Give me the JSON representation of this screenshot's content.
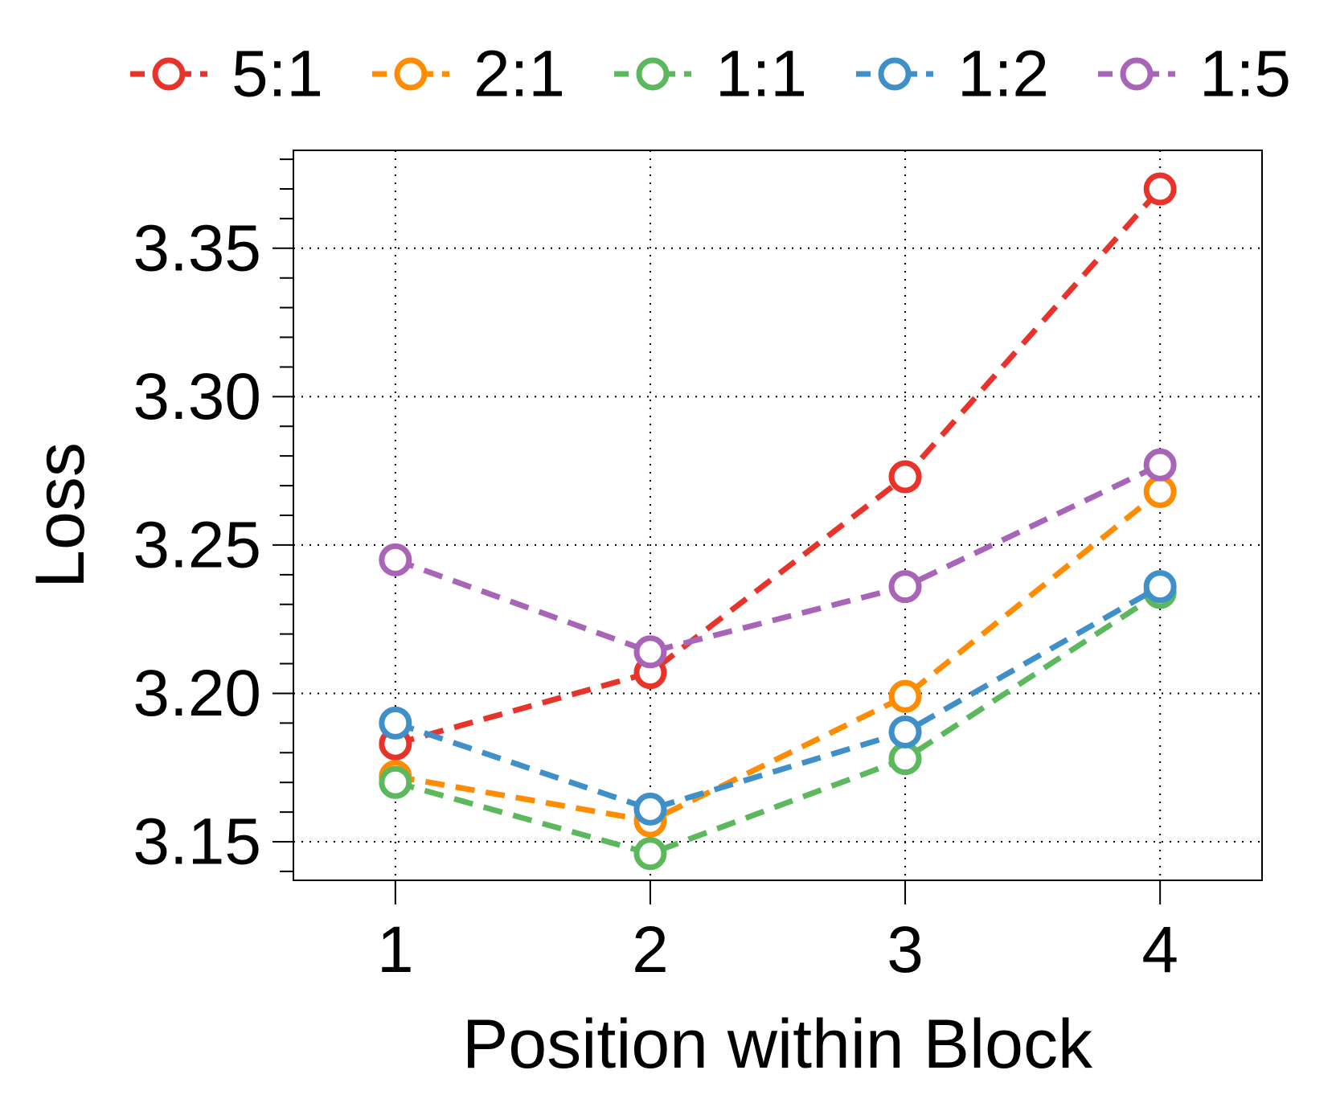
{
  "chart_data": {
    "type": "line",
    "title": "",
    "xlabel": "Position within Block",
    "ylabel": "Loss",
    "x": [
      1,
      2,
      3,
      4
    ],
    "x_tick_labels": [
      "1",
      "2",
      "3",
      "4"
    ],
    "xlim": [
      0.6,
      4.4
    ],
    "ylim": [
      3.137,
      3.383
    ],
    "y_ticks": [
      3.15,
      3.2,
      3.25,
      3.3,
      3.35
    ],
    "y_tick_labels": [
      "3.15",
      "3.20",
      "3.25",
      "3.30",
      "3.35"
    ],
    "y_minor_step": 0.01,
    "grid": true,
    "legend_position": "top",
    "series": [
      {
        "name": "5:1",
        "color": "#e8332a",
        "values": [
          3.183,
          3.207,
          3.273,
          3.37
        ]
      },
      {
        "name": "2:1",
        "color": "#ff8c00",
        "values": [
          3.172,
          3.157,
          3.199,
          3.268
        ]
      },
      {
        "name": "1:1",
        "color": "#5cb85c",
        "values": [
          3.17,
          3.146,
          3.178,
          3.234
        ]
      },
      {
        "name": "1:2",
        "color": "#3f8fc9",
        "values": [
          3.19,
          3.161,
          3.187,
          3.236
        ]
      },
      {
        "name": "1:5",
        "color": "#a865b8",
        "values": [
          3.245,
          3.214,
          3.236,
          3.277
        ]
      }
    ]
  }
}
